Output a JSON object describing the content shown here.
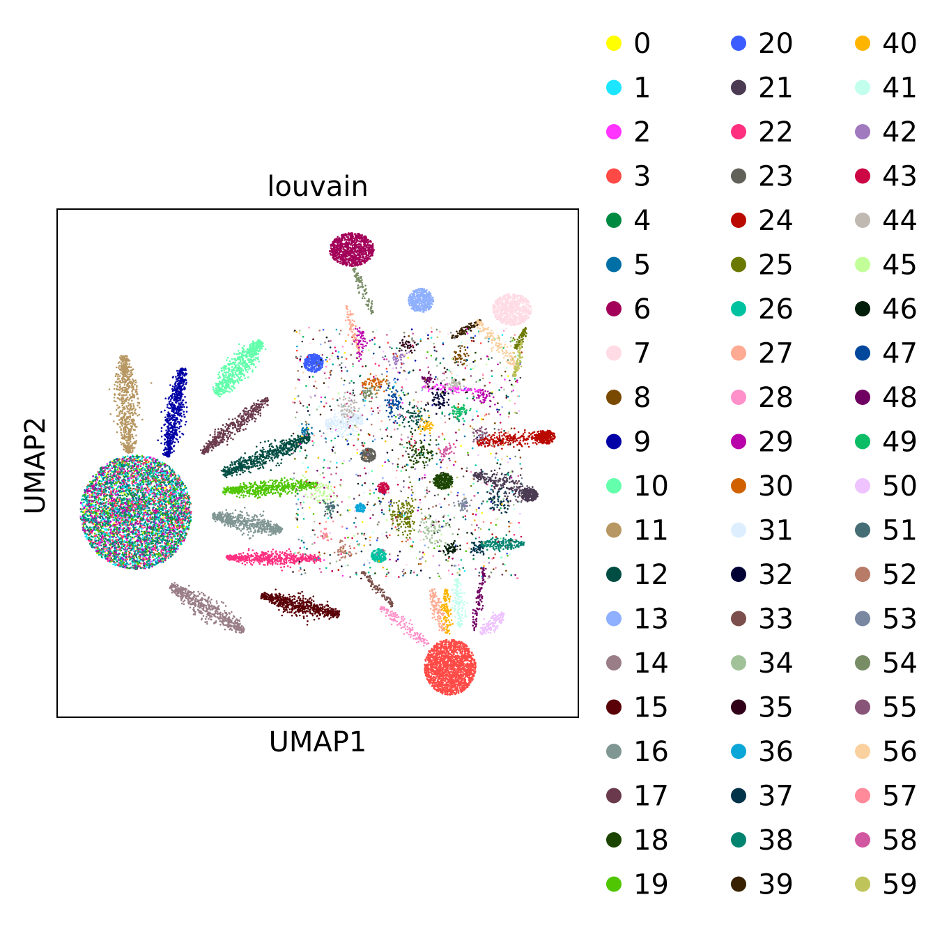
{
  "chart_data": {
    "type": "scatter",
    "title": "louvain",
    "xlabel": "UMAP1",
    "ylabel": "UMAP2",
    "x_ticks": "none",
    "y_ticks": "none",
    "grid": false,
    "legend_position": "right, outside plot, 3 columns",
    "legend": [
      {
        "label": "0",
        "color": "#ffff00"
      },
      {
        "label": "1",
        "color": "#1ce6ff"
      },
      {
        "label": "2",
        "color": "#ff34ff"
      },
      {
        "label": "3",
        "color": "#ff4a46"
      },
      {
        "label": "4",
        "color": "#008941"
      },
      {
        "label": "5",
        "color": "#006fa6"
      },
      {
        "label": "6",
        "color": "#a30059"
      },
      {
        "label": "7",
        "color": "#ffdbe5"
      },
      {
        "label": "8",
        "color": "#7a4900"
      },
      {
        "label": "9",
        "color": "#0000a6"
      },
      {
        "label": "10",
        "color": "#63ffac"
      },
      {
        "label": "11",
        "color": "#b79762"
      },
      {
        "label": "12",
        "color": "#004d43"
      },
      {
        "label": "13",
        "color": "#8fb0ff"
      },
      {
        "label": "14",
        "color": "#997d87"
      },
      {
        "label": "15",
        "color": "#5a0007"
      },
      {
        "label": "16",
        "color": "#809693"
      },
      {
        "label": "17",
        "color": "#6a3a4c"
      },
      {
        "label": "18",
        "color": "#1b4400"
      },
      {
        "label": "19",
        "color": "#4fc601"
      },
      {
        "label": "20",
        "color": "#3b5dff"
      },
      {
        "label": "21",
        "color": "#4a3b53"
      },
      {
        "label": "22",
        "color": "#ff2f80"
      },
      {
        "label": "23",
        "color": "#61615a"
      },
      {
        "label": "24",
        "color": "#ba0900"
      },
      {
        "label": "25",
        "color": "#6b7900"
      },
      {
        "label": "26",
        "color": "#00c2a0"
      },
      {
        "label": "27",
        "color": "#ffaa92"
      },
      {
        "label": "28",
        "color": "#ff90c9"
      },
      {
        "label": "29",
        "color": "#b903aa"
      },
      {
        "label": "30",
        "color": "#d16100"
      },
      {
        "label": "31",
        "color": "#ddefff"
      },
      {
        "label": "32",
        "color": "#000035"
      },
      {
        "label": "33",
        "color": "#7b4f4b"
      },
      {
        "label": "34",
        "color": "#a1c299"
      },
      {
        "label": "35",
        "color": "#300018"
      },
      {
        "label": "36",
        "color": "#0aa6d8"
      },
      {
        "label": "37",
        "color": "#013349"
      },
      {
        "label": "38",
        "color": "#00846f"
      },
      {
        "label": "39",
        "color": "#372101"
      },
      {
        "label": "40",
        "color": "#ffb500"
      },
      {
        "label": "41",
        "color": "#c2ffed"
      },
      {
        "label": "42",
        "color": "#a079bf"
      },
      {
        "label": "43",
        "color": "#cc0744"
      },
      {
        "label": "44",
        "color": "#c0b9b2"
      },
      {
        "label": "45",
        "color": "#c2ff99"
      },
      {
        "label": "46",
        "color": "#001e09"
      },
      {
        "label": "47",
        "color": "#00489c"
      },
      {
        "label": "48",
        "color": "#6f0062"
      },
      {
        "label": "49",
        "color": "#0cbd66"
      },
      {
        "label": "50",
        "color": "#eec3ff"
      },
      {
        "label": "51",
        "color": "#456d75"
      },
      {
        "label": "52",
        "color": "#b77b68"
      },
      {
        "label": "53",
        "color": "#7a87a1"
      },
      {
        "label": "54",
        "color": "#788d66"
      },
      {
        "label": "55",
        "color": "#885578"
      },
      {
        "label": "56",
        "color": "#fad09f"
      },
      {
        "label": "57",
        "color": "#ff8a9a"
      },
      {
        "label": "58",
        "color": "#d157a0"
      },
      {
        "label": "59",
        "color": "#bec459"
      }
    ]
  }
}
